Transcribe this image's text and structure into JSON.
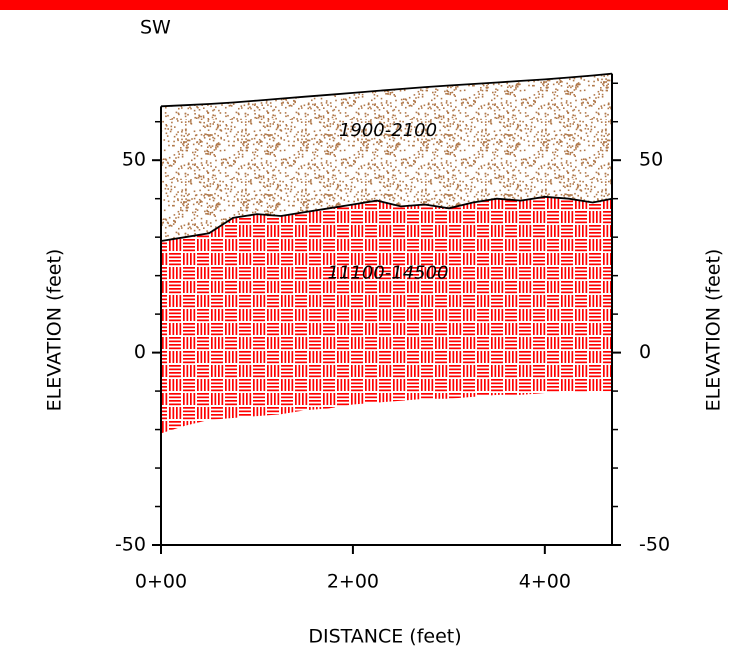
{
  "chart_data": {
    "type": "cross-section",
    "title": "SW",
    "xlabel": "DISTANCE (feet)",
    "ylabel": "ELEVATION (feet)",
    "y2label": "ELEVATION (feet)",
    "xlim": [
      0,
      470
    ],
    "ylim": [
      -50,
      75
    ],
    "xticks": [
      {
        "value": 0,
        "label": "0+00"
      },
      {
        "value": 200,
        "label": "2+00"
      },
      {
        "value": 400,
        "label": "4+00"
      }
    ],
    "yticks": [
      -50,
      0,
      50
    ],
    "yminorticks": [
      -40,
      -30,
      -20,
      -10,
      10,
      20,
      30,
      40,
      60,
      70
    ],
    "x": [
      0,
      25,
      50,
      75,
      100,
      125,
      150,
      175,
      200,
      225,
      250,
      275,
      300,
      325,
      350,
      375,
      400,
      425,
      450,
      470
    ],
    "layers": [
      {
        "name": "1900-2100",
        "color": "#b0784a",
        "top": [
          64,
          64.3,
          64.6,
          65,
          65.5,
          66,
          66.5,
          67,
          67.5,
          68,
          68.5,
          69,
          69.4,
          69.8,
          70.2,
          70.6,
          71,
          71.5,
          72,
          72.5
        ],
        "bottom": [
          29,
          30,
          31,
          35,
          36,
          35.5,
          36.5,
          37.5,
          38.5,
          39.5,
          38,
          38.5,
          37.5,
          39,
          40,
          39.5,
          40.5,
          40,
          39,
          40
        ]
      },
      {
        "name": "11100-14500",
        "color": "#ff0000",
        "top": [
          29,
          30,
          31,
          35,
          36,
          35.5,
          36.5,
          37.5,
          38.5,
          39.5,
          38,
          38.5,
          37.5,
          39,
          40,
          39.5,
          40.5,
          40,
          39,
          40
        ],
        "bottom": [
          -21,
          -19,
          -17.5,
          -17,
          -16.5,
          -16,
          -15,
          -14.5,
          -13.5,
          -13,
          -12.5,
          -12,
          -12,
          -11.5,
          -11,
          -11,
          -10.5,
          -10.5,
          -10,
          -10
        ]
      }
    ]
  }
}
